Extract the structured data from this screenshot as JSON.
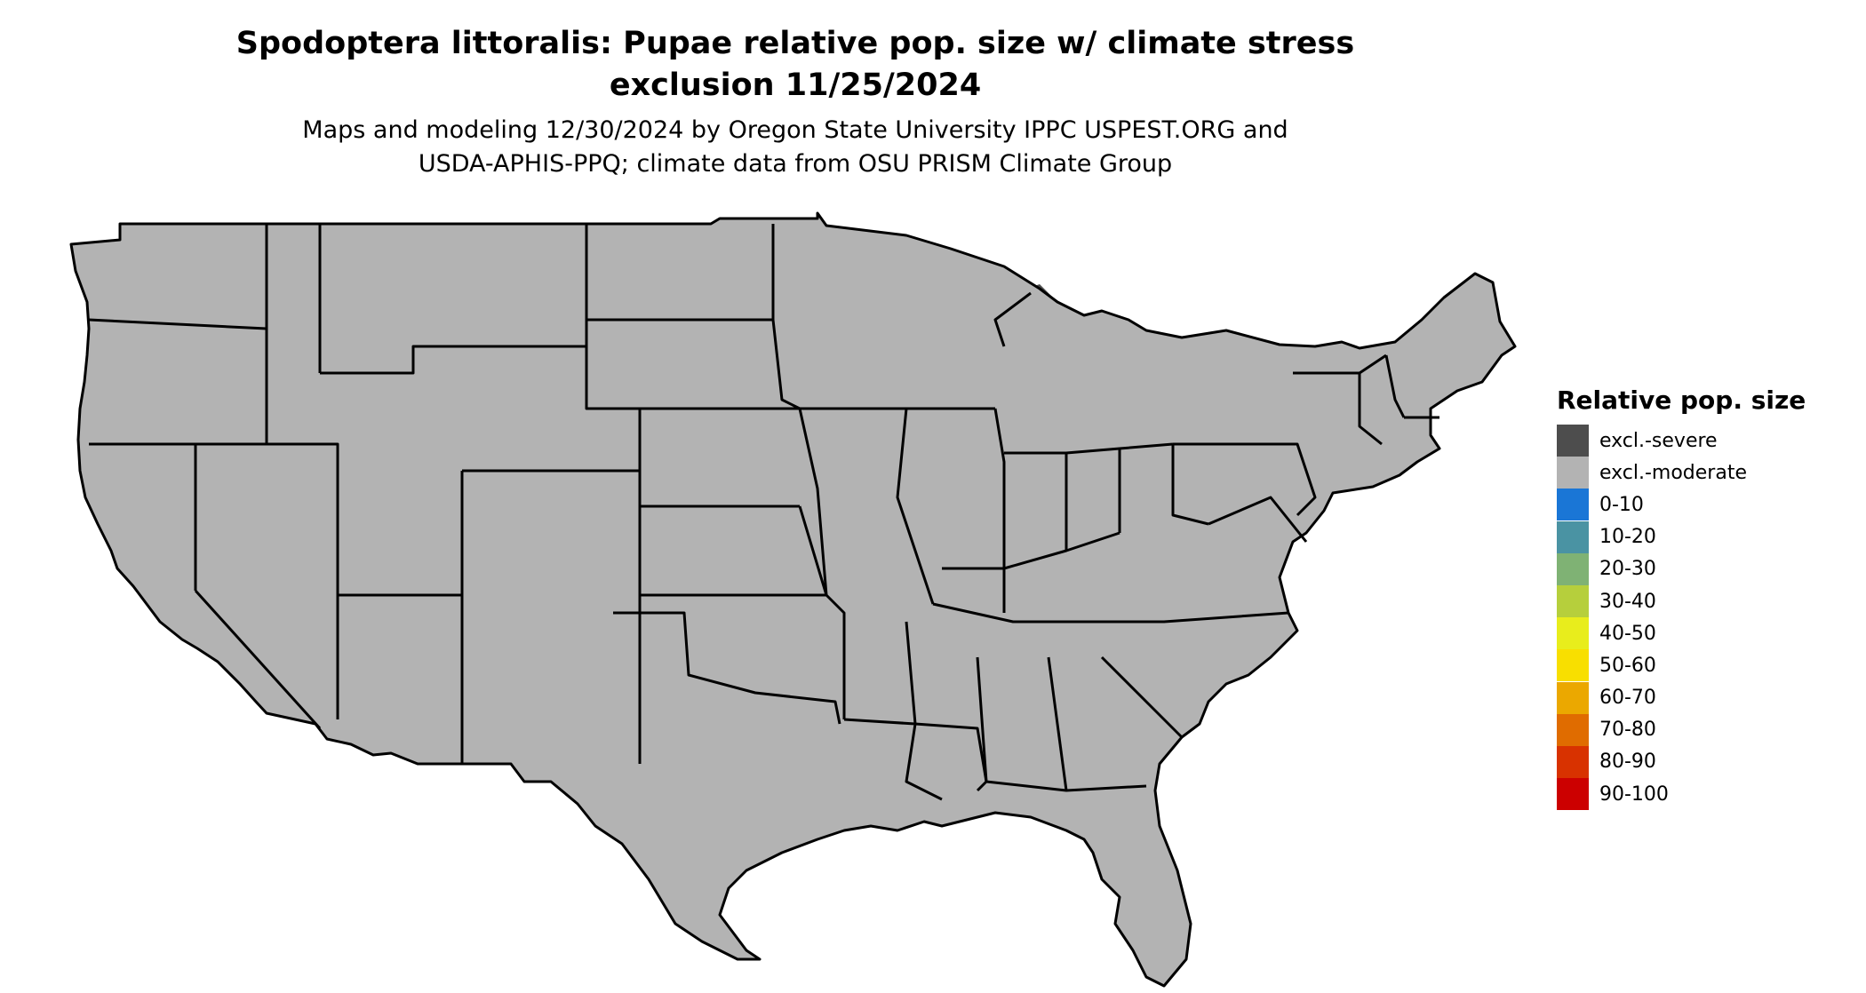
{
  "title": {
    "line1": "Spodoptera littoralis: Pupae relative pop. size w/ climate stress",
    "line2": "exclusion 11/25/2024"
  },
  "subtitle": {
    "line1": "Maps and modeling 12/30/2024 by Oregon State University IPPC USPEST.ORG and",
    "line2": "USDA-APHIS-PPQ; climate data from OSU PRISM Climate Group"
  },
  "legend": {
    "title": "Relative pop. size",
    "items": [
      {
        "label": "excl.-severe",
        "color": "#4d4d4d"
      },
      {
        "label": "excl.-moderate",
        "color": "#b3b3b3"
      },
      {
        "label": "0-10",
        "color": "#1a76d6"
      },
      {
        "label": "10-20",
        "color": "#4a93a3"
      },
      {
        "label": "20-30",
        "color": "#7fb274"
      },
      {
        "label": "30-40",
        "color": "#b6cf3c"
      },
      {
        "label": "40-50",
        "color": "#e8ed1c"
      },
      {
        "label": "50-60",
        "color": "#f8df00"
      },
      {
        "label": "60-70",
        "color": "#eba800"
      },
      {
        "label": "70-80",
        "color": "#e06c00"
      },
      {
        "label": "80-90",
        "color": "#d83200"
      },
      {
        "label": "90-100",
        "color": "#cc0000"
      }
    ]
  },
  "map": {
    "region": "contiguous-united-states",
    "colors": {
      "severe": "#4d4d4d",
      "moderate": "#b3b3b3",
      "low": "#1a76d6",
      "mid": "#eba800",
      "high": "#e06c00",
      "border": "#000000"
    }
  }
}
